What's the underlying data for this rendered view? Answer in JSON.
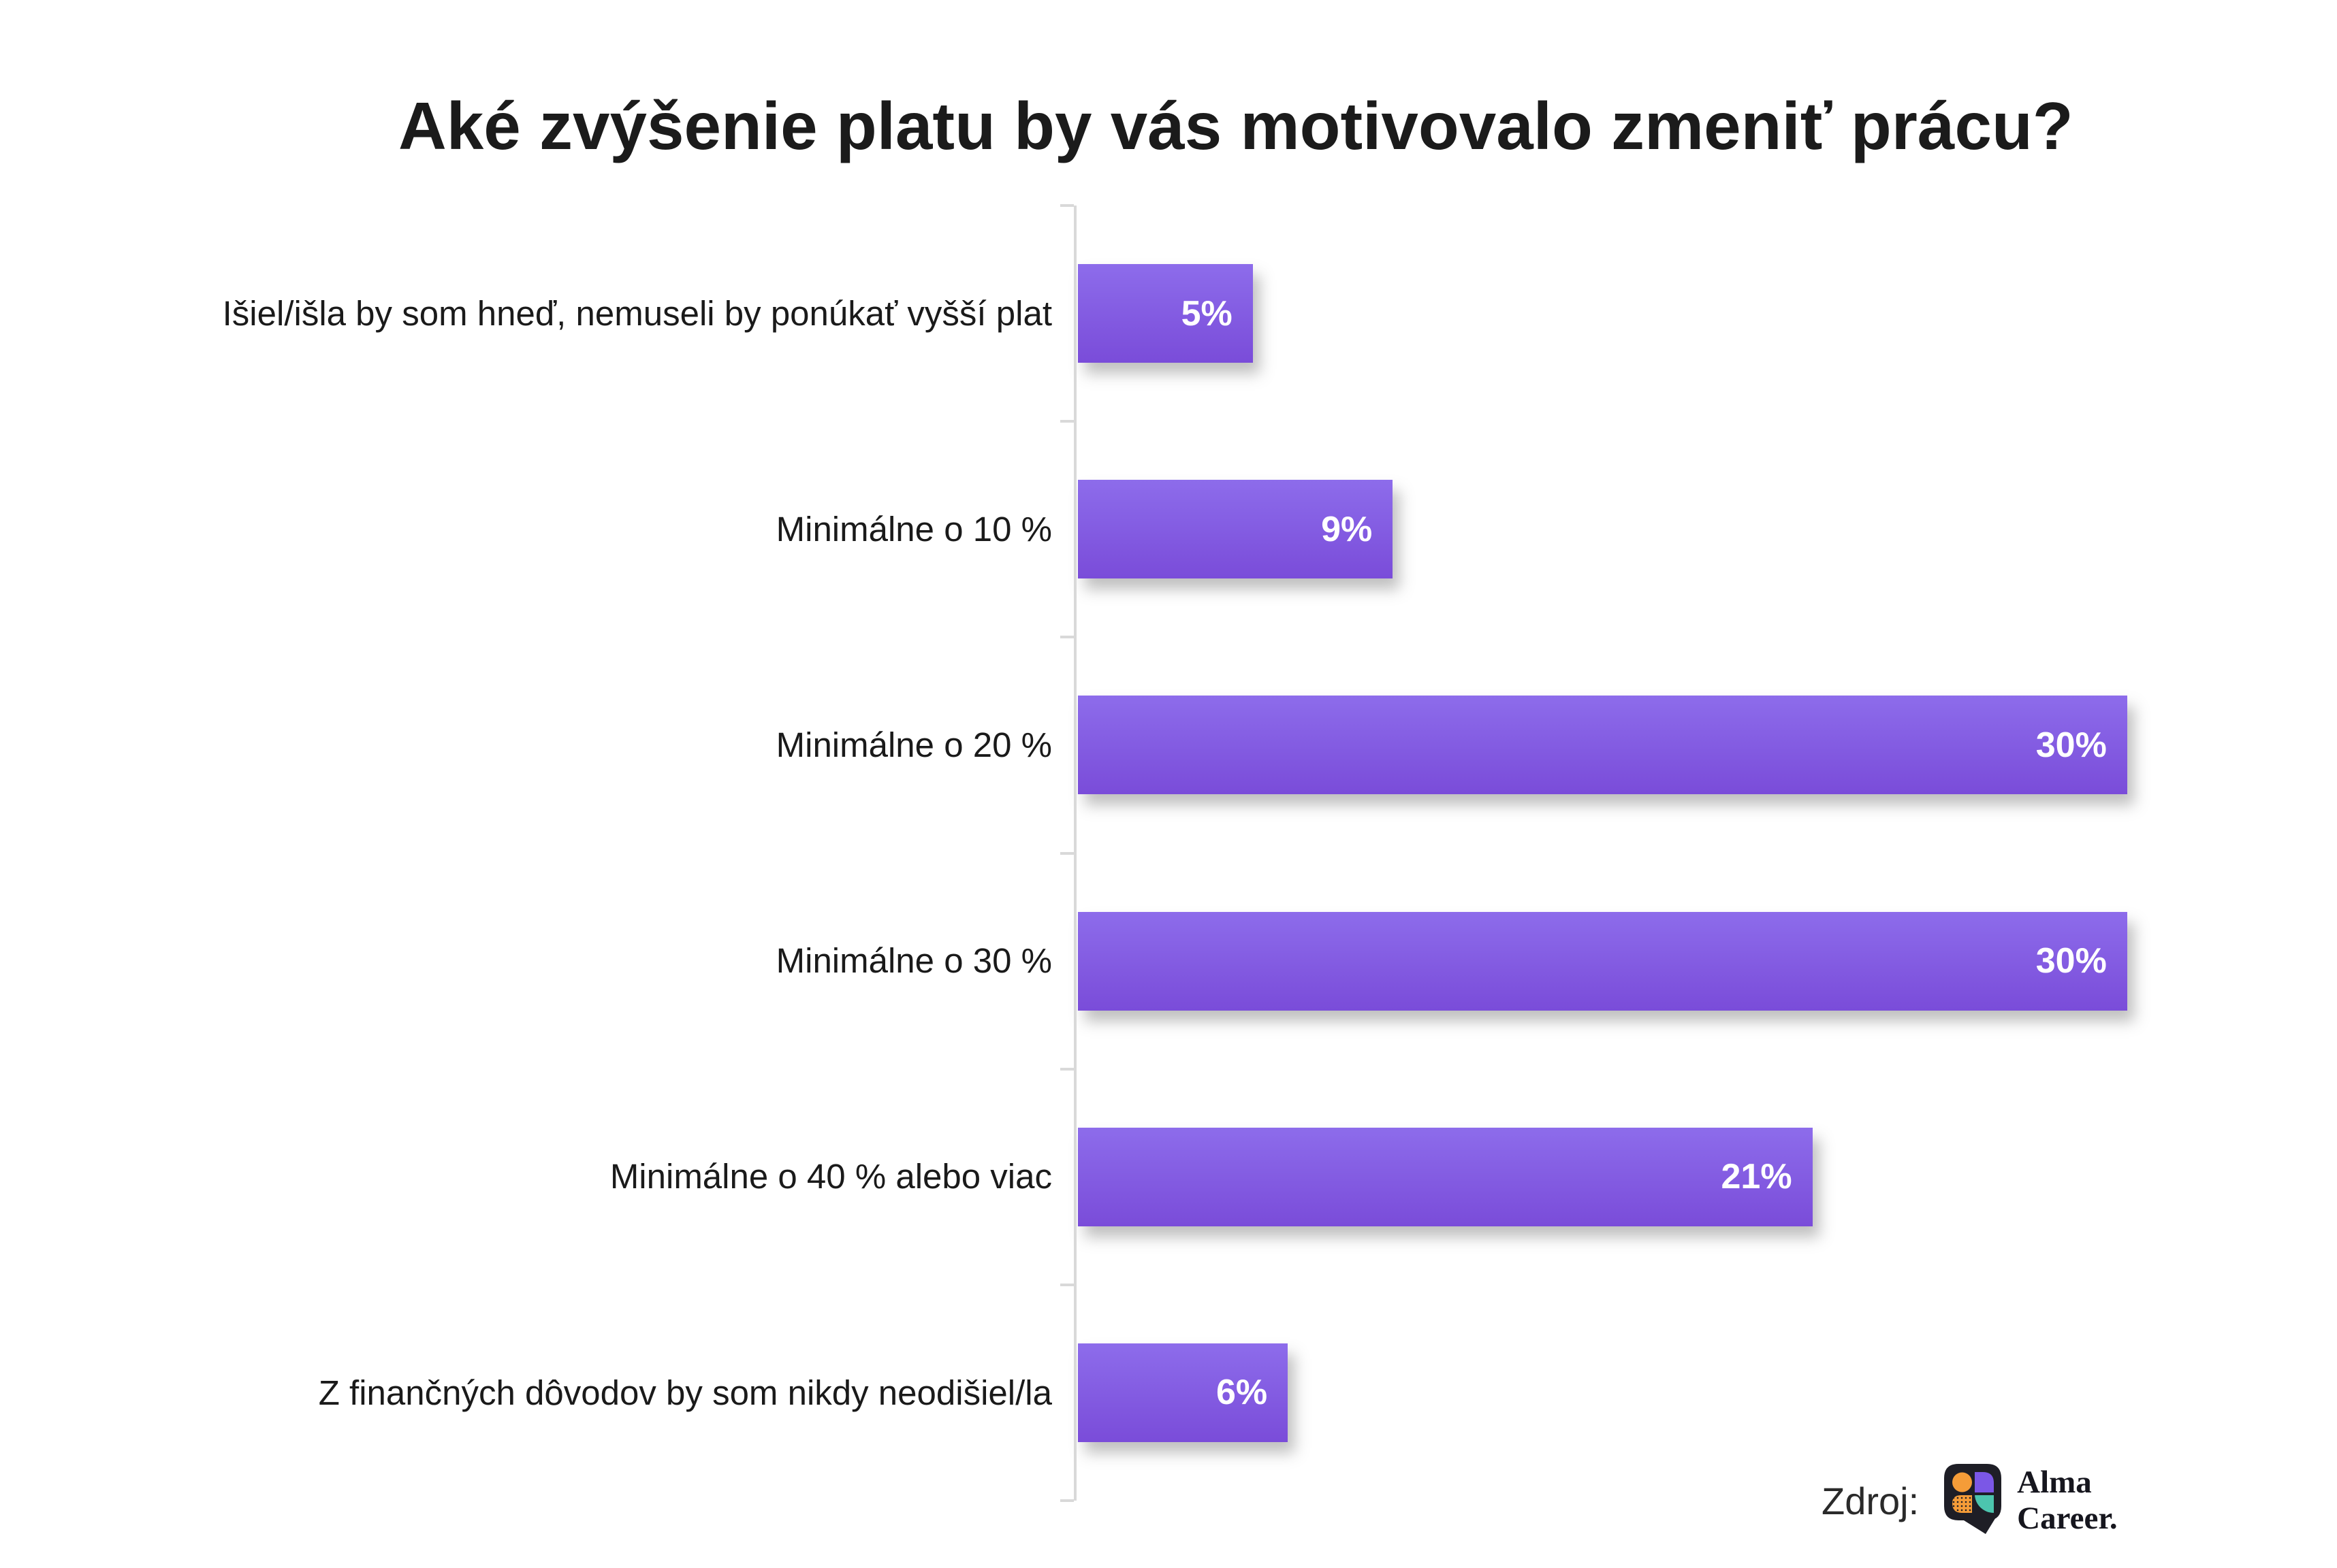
{
  "chart_data": {
    "type": "bar",
    "orientation": "horizontal",
    "title": "Aké zvýšenie platu by vás motivovalo zmeniť prácu?",
    "categories": [
      "Išiel/išla by som hneď, nemuseli by ponúkať vyšší plat",
      "Minimálne o 10 %",
      "Minimálne o 20 %",
      "Minimálne o 30 %",
      "Minimálne o 40 % alebo viac",
      "Z finančných dôvodov by som nikdy neodišiel/la"
    ],
    "values": [
      5,
      9,
      30,
      30,
      21,
      6
    ],
    "value_labels": [
      "5%",
      "9%",
      "30%",
      "30%",
      "21%",
      "6%"
    ],
    "xlabel": "",
    "ylabel": "",
    "xlim": [
      0,
      36
    ],
    "grid": false,
    "legend": false,
    "value_label_position": "inside-end",
    "colors": {
      "bar_gradient_top": "#8d6ceb",
      "bar_gradient_bottom": "#7a4cd9",
      "value_label_text": "#ffffff",
      "axis_line": "#d9d9d9",
      "title_text": "#1b1b1b",
      "category_text": "#1a1a1a"
    }
  },
  "footer": {
    "source_label": "Zdroj:",
    "brand_line1": "Alma",
    "brand_line2": "Career.",
    "logo_colors": {
      "bubble": "#1e1e26",
      "circle": "#f59c38",
      "square": "#7b57e6",
      "leaf": "#f59c38",
      "quarter": "#4cc5ae"
    }
  }
}
